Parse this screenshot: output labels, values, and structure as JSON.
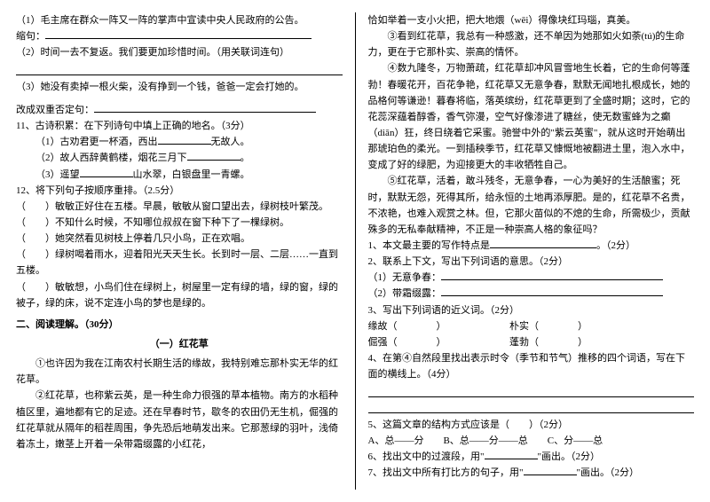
{
  "left": {
    "q1": "（1）毛主席在群众一阵又一阵的掌声中宣读中央人民政府的公告。",
    "q1b": "缩句：",
    "q2": "（2）时间一去不复返。我们要更加珍惜时间。（用关联词连句）",
    "q3": "（3）她没有卖掉一根火柴，没有挣到一个钱，爸爸一定会打她的。",
    "q3b": "改成双重否定句：",
    "q11": "11、古诗积累：在下列诗句中填上正确的地名。（3分）",
    "q11_1a": "（1）古劝君更一杯酒，西出",
    "q11_1b": "无故人。",
    "q11_2a": "（2）故人西辞黄鹤楼，烟花三月下",
    "q11_2b": "。",
    "q11_3a": "（3）遥望",
    "q11_3b": "山水翠，白银盘里一青螺。",
    "q12": "12、将下列句子按顺序重排。（2.5分）",
    "q12_1": "（　　）敏敏正好住在五楼。早晨，敏敏从窗口望出去，绿树枝叶繁茂。",
    "q12_2": "（　　）不知什么时候，不知哪位叔叔在窗下种下了一棵绿树。",
    "q12_3": "（　　）她突然看见树枝上停着几只小鸟，正在欢唱。",
    "q12_4": "（　　）绿树喝着雨水，迎着阳光天天生长。长到时一层、二层……一直到五楼。",
    "q12_5": "（　　）敏敏想，小鸟们住在绿树上，树屋里一定有绿的墙，绿的窗，绿的被子，绿的床，说不定连小鸟的梦也是绿的。",
    "section2": "二、阅读理解。（30分）",
    "title1": "（一）红花草",
    "p1": "①也许因为我在江南农村长期生活的缘故，我特别难忘那朴实无华的红花草。",
    "p2": "②红花草，也称紫云英，是一种生命力很强的草本植物。南方的水稻种植区里，遍地都有它的足迹。还在早春时节，歇冬的农田仍无生机，倔强的红花草就从隔年的稻茬周围，争先恐后地萌发出来。它那葱绿的羽叶，浅倚着冻土，嫩茎上开着一朵带霜缀露的小红花，"
  },
  "right": {
    "p2b": "恰如举着一支小火把，把大地煨（wēi）得像块红玛瑙，真美。",
    "p3": "③看到红花草，我总有一种感激，还不单因为她那如火如荼(tú)的生命力，更在于它那朴实、崇高的情怀。",
    "p4": "④数九隆冬，万物萧疏，红花草却冲风冒雪地生长着，它的生命何等蓬勃！春暖花开，百花争艳，红花草又无意争春，默默无闻地扎根成长，她的品格何等谦逊！暮春将临，落英缤纷，红花草更到了全盛时期；这时，它的花蕊深蕴着醇香，香气弥漫，空气好像渗进了糖丝，使无数蜜蜂为之癫（diān）狂，终日绕着它采蜜。驰誉中外的\"紫云英蜜\"，就从这时开始萌出那琥珀色的柔光。一到插秧季节，红花草又慷慨地被翻进土里，泡入水中，变成了好的绿肥，为迎接更大的丰收牺牲自己。",
    "p5": "⑤红花草，活着，敢斗残冬，无意争春，一心为美好的生活酿蜜；死时，默默无怨，死得其所，给永恒的土地再添厚肥。是的，红花草不名贵，不浓艳，也难入观赏之林。但，它那火苗似的不熄的生命，所需极少，贡献殊多的无私奉献精神，不正是一种崇高人格的象征吗？",
    "q1": "1、本文最主要的写作特点是",
    "q1b": "。（2分）",
    "q2": "2、联系上下文，写出下列词语的意思。（2分）",
    "q2_1": "（1）无意争春：",
    "q2_2": "（2）带霜缀露：",
    "q3": "3、写出下列词语的近义词。（2分）",
    "q3a": "缘故（　　　　）",
    "q3b": "朴实（　　　　）",
    "q3c": "倔强（　　　　）",
    "q3d": "蓬勃（　　　　）",
    "q4": "4、在第④自然段里找出表示时令（季节和节气）推移的四个词语，写在下面的横线上。（4分）",
    "q5": "5、这篇文章的结构方式应该是（　　）（2分）",
    "q5a": "A、总——分",
    "q5b": "B、总——分——总",
    "q5c": "C、分——总",
    "q6": "6、找出文中的过渡段，用\"",
    "q6b": "\"画出。（2分）",
    "q7": "7、找出文中所有打比方的句子，用\"",
    "q7b": "\"画出。（2分）"
  }
}
